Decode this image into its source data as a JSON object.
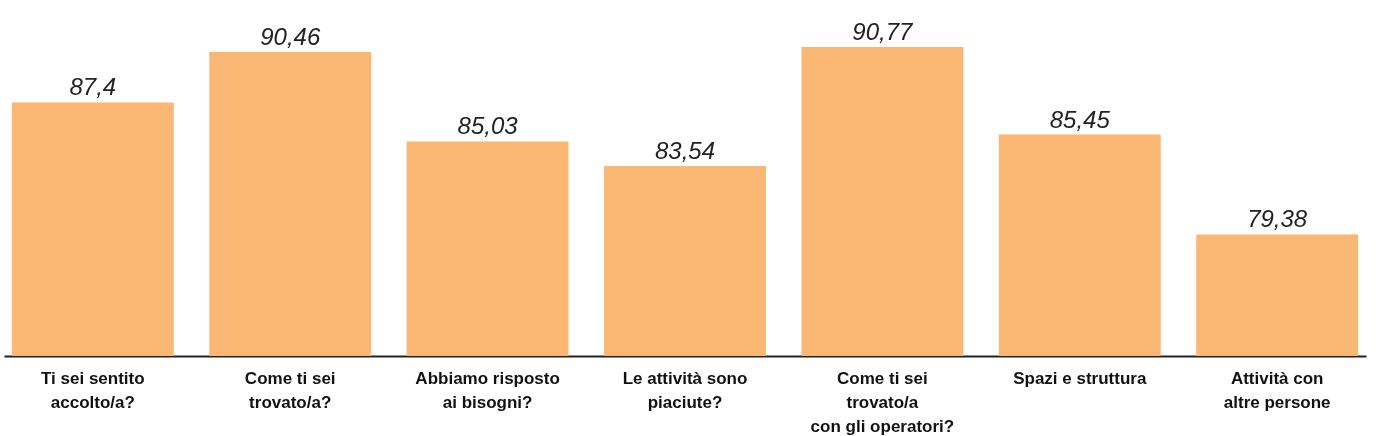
{
  "chart_data": {
    "type": "bar",
    "categories": [
      "Ti sei sentito\naccolto/a?",
      "Come ti sei\ntrovato/a?",
      "Abbiamo risposto\nai bisogni?",
      "Le attività sono\npiaciute?",
      "Come ti sei\ntrovato/a\ncon gli operatori?",
      "Spazi e struttura",
      "Attività con\naltre persone"
    ],
    "values": [
      87.4,
      90.46,
      85.03,
      83.54,
      90.77,
      85.45,
      79.38
    ],
    "value_labels": [
      "87,4",
      "90,46",
      "85,03",
      "83,54",
      "90,77",
      "85,45",
      "79,38"
    ],
    "color": "#fab673",
    "ylim": [
      72,
      93.5
    ],
    "tick_labels": "x",
    "grid": false
  }
}
